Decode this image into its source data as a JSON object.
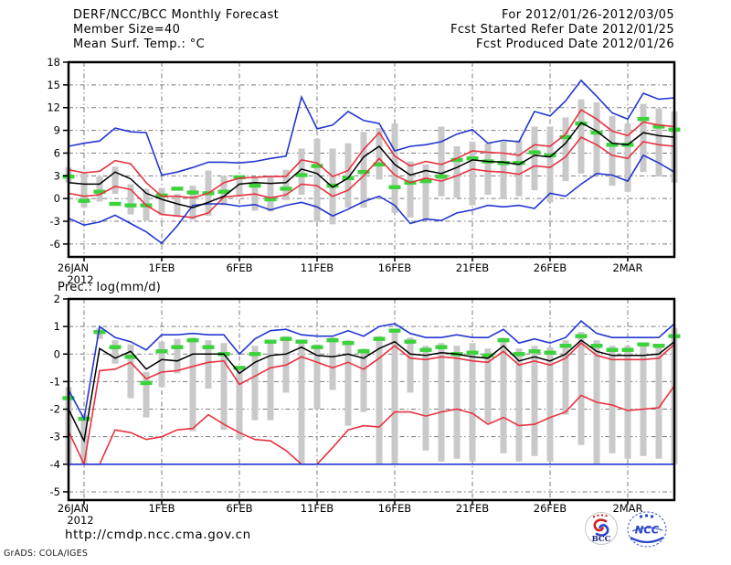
{
  "header": {
    "title_left": "DERF/NCC/BCC Monthly Forecast",
    "member_size": "Member Size=40",
    "for_range": "For 2012/01/26-2012/03/05",
    "fcst_started": "Fcst Started Refer Date 2012/01/25",
    "fcst_produced": "Fcst Produced Date 2012/01/26"
  },
  "footer": {
    "url": "http://cmdp.ncc.cma.gov.cn",
    "credit": "GrADS: COLA/IGES",
    "logos": [
      {
        "label": "BCC"
      },
      {
        "label": "NCC"
      }
    ]
  },
  "colors": {
    "blue": "#2236d1",
    "red": "#e8323f",
    "black": "#000000",
    "green": "#3bd23b",
    "bar_gray": "#c9c9c9",
    "grid_gray": "#7a7a7a",
    "frame": "#000000",
    "logo_navy": "#16247e",
    "logo_blue": "#2b46c8",
    "logo_red": "#cc2222"
  },
  "chart_data": [
    {
      "type": "line",
      "title": "Mean Surf. Temp.: °C",
      "x_year": "2012",
      "x_tick_labels": [
        "26JAN",
        "1FEB",
        "6FEB",
        "11FEB",
        "16FEB",
        "21FEB",
        "26FEB",
        "2MAR"
      ],
      "x_tick_days": [
        0,
        6,
        11,
        16,
        21,
        26,
        31,
        36
      ],
      "grid_days": [
        1,
        6,
        11,
        16,
        21,
        26,
        31,
        36
      ],
      "n_days": 40,
      "ylim": [
        -7.7,
        18
      ],
      "yticks": [
        18,
        15,
        12,
        9,
        6,
        3,
        0,
        -3,
        -6
      ],
      "grid": true,
      "legend": "none",
      "series": [
        {
          "name": "ensemble-max-blue",
          "color": "#2236d1",
          "values": [
            6.9,
            7.3,
            7.6,
            9.3,
            8.8,
            8.7,
            3.1,
            3.5,
            4.1,
            4.8,
            4.8,
            4.7,
            4.9,
            5.3,
            5.6,
            13.4,
            9.2,
            9.7,
            11.5,
            10.3,
            9.9,
            6.3,
            6.9,
            7.1,
            7.5,
            8.5,
            9.1,
            7.3,
            7.7,
            7.5,
            11.5,
            10.9,
            12.9,
            15.6,
            13.5,
            11.3,
            10.5,
            13.9,
            13.1,
            13.3
          ]
        },
        {
          "name": "upper-spread-red",
          "color": "#e8323f",
          "values": [
            3.8,
            3.4,
            3.6,
            5.0,
            4.6,
            2.1,
            0.3,
            0.3,
            0.1,
            0.7,
            2.1,
            2.7,
            2.8,
            2.9,
            2.9,
            5.1,
            4.7,
            2.9,
            3.7,
            6.5,
            8.7,
            5.6,
            4.3,
            4.9,
            4.5,
            5.3,
            6.3,
            6.1,
            6.0,
            5.7,
            7.1,
            6.9,
            8.5,
            11.7,
            10.5,
            8.9,
            8.3,
            10.1,
            9.7,
            9.5
          ]
        },
        {
          "name": "ensemble-mean-black",
          "color": "#000000",
          "values": [
            2.1,
            1.9,
            1.9,
            3.5,
            2.6,
            0.7,
            -0.1,
            -0.7,
            -1.2,
            -0.5,
            0.3,
            1.9,
            2.1,
            2.0,
            2.1,
            3.9,
            3.3,
            1.5,
            2.7,
            5.5,
            6.9,
            4.5,
            3.1,
            3.7,
            3.3,
            4.1,
            5.1,
            4.9,
            4.8,
            4.5,
            5.7,
            5.5,
            7.3,
            10.0,
            8.9,
            7.3,
            7.1,
            8.7,
            8.3,
            8.1
          ]
        },
        {
          "name": "lower-spread-red",
          "color": "#e8323f",
          "values": [
            0.7,
            0.3,
            0.5,
            1.6,
            1.2,
            -0.9,
            -2.1,
            -2.3,
            -2.5,
            -1.9,
            0.2,
            0.4,
            0.6,
            0.1,
            0.5,
            1.9,
            1.7,
            0.3,
            1.1,
            3.0,
            5.3,
            3.1,
            2.1,
            2.7,
            2.3,
            3.0,
            3.9,
            3.6,
            3.5,
            3.2,
            4.3,
            4.1,
            5.5,
            8.1,
            7.1,
            5.7,
            5.3,
            7.5,
            7.1,
            6.9
          ]
        },
        {
          "name": "ensemble-min-blue",
          "color": "#2236d1",
          "values": [
            -2.6,
            -3.5,
            -3.1,
            -2.2,
            -3.3,
            -4.4,
            -5.9,
            -3.6,
            -0.9,
            -0.7,
            -0.7,
            -1.0,
            -0.8,
            -1.5,
            -0.9,
            -0.5,
            -1.1,
            -2.3,
            -1.4,
            -0.4,
            0.3,
            -0.9,
            -3.3,
            -2.7,
            -2.9,
            -1.9,
            -1.5,
            -0.9,
            -1.1,
            -0.9,
            -1.3,
            0.7,
            0.3,
            1.9,
            3.3,
            3.1,
            2.3,
            5.7,
            4.7,
            3.5
          ]
        }
      ],
      "markers": {
        "name": "green-dash-markers",
        "color": "#3bd23b",
        "values": [
          2.9,
          -0.3,
          0.9,
          -0.7,
          -0.9,
          -0.9,
          0.4,
          1.3,
          0.8,
          0.7,
          0.9,
          2.8,
          1.7,
          -0.1,
          1.3,
          3.1,
          4.3,
          1.7,
          2.7,
          3.5,
          4.5,
          1.5,
          2.1,
          2.3,
          2.9,
          5.1,
          5.3,
          4.9,
          4.7,
          4.7,
          6.1,
          5.7,
          8.1,
          9.9,
          8.7,
          7.1,
          7.1,
          10.5,
          9.5,
          9.1
        ]
      },
      "spread_bars": [
        [
          2.1,
          4.1
        ],
        [
          -1.2,
          3.4
        ],
        [
          -0.4,
          2.9
        ],
        [
          0.6,
          4.2
        ],
        [
          -2.1,
          1.9
        ],
        [
          -2.9,
          1.3
        ],
        [
          -2.2,
          1.4
        ],
        [
          -2.4,
          0.6
        ],
        [
          -2.8,
          1.7
        ],
        [
          -2.3,
          3.7
        ],
        [
          -0.9,
          3.0
        ],
        [
          0.3,
          3.0
        ],
        [
          -1.6,
          2.9
        ],
        [
          -1.7,
          3.0
        ],
        [
          -0.2,
          3.8
        ],
        [
          0.5,
          6.6
        ],
        [
          -3.1,
          7.9
        ],
        [
          -3.4,
          6.6
        ],
        [
          -1.2,
          7.3
        ],
        [
          -1.2,
          8.8
        ],
        [
          2.5,
          9.3
        ],
        [
          -1.9,
          9.9
        ],
        [
          -2.5,
          4.9
        ],
        [
          -2.9,
          4.5
        ],
        [
          0.3,
          9.5
        ],
        [
          0.1,
          6.9
        ],
        [
          -0.9,
          7.5
        ],
        [
          0.5,
          7.3
        ],
        [
          -0.1,
          7.5
        ],
        [
          0.3,
          7.7
        ],
        [
          1.1,
          9.5
        ],
        [
          -0.5,
          9.5
        ],
        [
          2.3,
          10.7
        ],
        [
          3.3,
          13.1
        ],
        [
          3.1,
          12.7
        ],
        [
          1.7,
          10.9
        ],
        [
          0.9,
          9.9
        ],
        [
          3.5,
          12.5
        ],
        [
          2.9,
          11.9
        ],
        [
          2.1,
          11.5
        ]
      ]
    },
    {
      "type": "line",
      "title": "Prec.: log(mm/d)",
      "x_year": "2012",
      "x_tick_labels": [
        "26JAN",
        "1FEB",
        "6FEB",
        "11FEB",
        "16FEB",
        "21FEB",
        "26FEB",
        "2MAR"
      ],
      "x_tick_days": [
        0,
        6,
        11,
        16,
        21,
        26,
        31,
        36
      ],
      "grid_days": [
        1,
        6,
        11,
        16,
        21,
        26,
        31,
        36
      ],
      "n_days": 40,
      "ylim": [
        -5.3,
        2
      ],
      "yticks": [
        2,
        1,
        0,
        -1,
        -2,
        -3,
        -4,
        -5
      ],
      "grid": true,
      "legend": "none",
      "series": [
        {
          "name": "ensemble-max-blue",
          "color": "#2236d1",
          "values": [
            -1.3,
            -2.35,
            1.0,
            0.6,
            0.45,
            0.15,
            0.7,
            0.7,
            0.75,
            0.7,
            0.7,
            0.0,
            0.55,
            0.85,
            0.9,
            0.7,
            0.65,
            0.65,
            0.85,
            0.65,
            1.0,
            1.1,
            0.75,
            0.6,
            0.6,
            0.7,
            0.6,
            0.6,
            0.9,
            0.4,
            0.55,
            0.4,
            0.6,
            1.2,
            0.75,
            0.6,
            0.6,
            0.6,
            0.6,
            1.1
          ]
        },
        {
          "name": "upper-spread-red",
          "color": "#e8323f",
          "values": [
            -2.8,
            -4.0,
            -0.6,
            -0.55,
            -0.3,
            -0.9,
            -0.65,
            -0.6,
            -0.45,
            -0.3,
            -0.25,
            -1.1,
            -0.8,
            -0.5,
            -0.4,
            -0.1,
            -0.3,
            -0.5,
            -0.3,
            -0.55,
            -0.15,
            0.3,
            -0.15,
            -0.2,
            -0.1,
            -0.15,
            -0.25,
            -0.3,
            0.1,
            -0.4,
            -0.25,
            -0.4,
            -0.15,
            0.4,
            -0.05,
            -0.2,
            -0.2,
            -0.2,
            -0.15,
            0.35
          ]
        },
        {
          "name": "ensemble-mean-black",
          "color": "#000000",
          "values": [
            -2.0,
            -3.15,
            0.2,
            -0.15,
            0.1,
            -0.55,
            -0.2,
            -0.25,
            0.0,
            0.0,
            0.0,
            -0.7,
            -0.3,
            -0.05,
            0.0,
            0.25,
            -0.05,
            -0.1,
            0.0,
            -0.15,
            0.2,
            0.45,
            0.0,
            -0.05,
            0.05,
            0.0,
            -0.1,
            -0.15,
            0.3,
            -0.25,
            -0.1,
            -0.25,
            0.0,
            0.5,
            0.1,
            -0.05,
            -0.05,
            -0.05,
            0.0,
            0.45
          ]
        },
        {
          "name": "lower-spread-red",
          "color": "#e8323f",
          "values": [
            -4.0,
            -4.0,
            -4.0,
            -2.75,
            -2.85,
            -3.1,
            -3.0,
            -2.75,
            -2.7,
            -2.2,
            -2.55,
            -2.85,
            -3.1,
            -3.15,
            -3.5,
            -4.0,
            -4.0,
            -3.4,
            -2.75,
            -2.6,
            -2.65,
            -2.1,
            -2.1,
            -2.25,
            -2.1,
            -2.0,
            -2.15,
            -2.55,
            -2.3,
            -2.6,
            -2.55,
            -2.3,
            -2.1,
            -1.5,
            -1.75,
            -1.85,
            -2.05,
            -2.0,
            -1.95,
            -1.15
          ]
        },
        {
          "name": "ensemble-min-blue",
          "color": "#2236d1",
          "values": [
            -4.0,
            -4.0,
            -4.0,
            -4.0,
            -4.0,
            -4.0,
            -4.0,
            -4.0,
            -4.0,
            -4.0,
            -4.0,
            -4.0,
            -4.0,
            -4.0,
            -4.0,
            -4.0,
            -4.0,
            -4.0,
            -4.0,
            -4.0,
            -4.0,
            -4.0,
            -4.0,
            -4.0,
            -4.0,
            -4.0,
            -4.0,
            -4.0,
            -4.0,
            -4.0,
            -4.0,
            -4.0,
            -4.0,
            -4.0,
            -4.0,
            -4.0,
            -4.0,
            -4.0,
            -4.0,
            -4.0
          ]
        }
      ],
      "markers": {
        "name": "green-dash-markers",
        "color": "#3bd23b",
        "values": [
          -1.6,
          -2.35,
          0.8,
          0.25,
          -0.1,
          -1.05,
          0.1,
          0.25,
          0.5,
          0.25,
          0.0,
          -0.5,
          0.0,
          0.45,
          0.55,
          0.45,
          0.25,
          0.5,
          0.4,
          0.1,
          0.55,
          0.85,
          0.45,
          0.15,
          0.25,
          0.0,
          0.05,
          -0.05,
          0.5,
          0.0,
          0.1,
          0.05,
          0.3,
          0.65,
          0.3,
          0.15,
          0.15,
          0.35,
          0.3,
          0.65
        ]
      },
      "spread_bars": [
        [
          -4.0,
          -1.2
        ],
        [
          -4.0,
          -2.2
        ],
        [
          0.55,
          0.95
        ],
        [
          -0.35,
          0.5
        ],
        [
          -1.6,
          0.35
        ],
        [
          -2.3,
          -0.65
        ],
        [
          -1.2,
          0.45
        ],
        [
          -0.7,
          0.55
        ],
        [
          -2.8,
          0.6
        ],
        [
          -1.25,
          0.5
        ],
        [
          -2.75,
          0.4
        ],
        [
          -3.1,
          -0.5
        ],
        [
          -2.4,
          0.3
        ],
        [
          -2.4,
          0.5
        ],
        [
          -1.4,
          0.65
        ],
        [
          -4.0,
          0.5
        ],
        [
          -2.0,
          0.35
        ],
        [
          -1.3,
          0.6
        ],
        [
          -2.6,
          0.5
        ],
        [
          -2.1,
          0.2
        ],
        [
          -4.0,
          0.65
        ],
        [
          -4.0,
          0.9
        ],
        [
          -1.4,
          0.6
        ],
        [
          -3.5,
          0.3
        ],
        [
          -3.9,
          0.4
        ],
        [
          -3.8,
          0.3
        ],
        [
          -3.9,
          0.4
        ],
        [
          -2.5,
          0.2
        ],
        [
          -3.6,
          0.6
        ],
        [
          -3.9,
          0.2
        ],
        [
          -3.7,
          0.3
        ],
        [
          -3.9,
          0.25
        ],
        [
          -2.2,
          0.5
        ],
        [
          -3.3,
          0.8
        ],
        [
          -4.0,
          0.5
        ],
        [
          -3.6,
          0.3
        ],
        [
          -3.8,
          0.3
        ],
        [
          -3.7,
          0.4
        ],
        [
          -3.8,
          0.35
        ],
        [
          -4.0,
          0.95
        ]
      ]
    }
  ]
}
